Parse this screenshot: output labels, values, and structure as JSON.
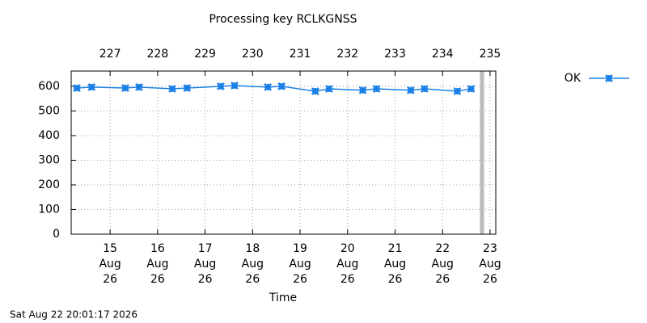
{
  "chart_data": {
    "type": "line",
    "title": "Processing key RCLKGNSS",
    "x_label": "Time",
    "timestamp": "Sat Aug 22 20:01:17 2026",
    "x": [
      226.3,
      226.61,
      227.32,
      227.61,
      228.31,
      228.62,
      229.33,
      229.62,
      230.32,
      230.61,
      231.32,
      231.61,
      232.32,
      232.61,
      233.33,
      233.62,
      234.31,
      234.6
    ],
    "series": [
      {
        "name": "OK",
        "color": "#1a80e6",
        "values": [
          593,
          597,
          593,
          597,
          590,
          593,
          600,
          603,
          597,
          600,
          580,
          590,
          584,
          590,
          584,
          590,
          580,
          590
        ]
      }
    ],
    "now_marker": 234.83,
    "xlim": [
      226.18,
      235.12
    ],
    "ylim": [
      0,
      662
    ],
    "yticks": [
      0,
      100,
      200,
      300,
      400,
      500,
      600
    ],
    "x2ticks": [
      227,
      228,
      229,
      230,
      231,
      232,
      233,
      234,
      235
    ],
    "xticks": [
      {
        "value": 227,
        "label": [
          "15",
          "Aug",
          "26"
        ]
      },
      {
        "value": 228,
        "label": [
          "16",
          "Aug",
          "26"
        ]
      },
      {
        "value": 229,
        "label": [
          "17",
          "Aug",
          "26"
        ]
      },
      {
        "value": 230,
        "label": [
          "18",
          "Aug",
          "26"
        ]
      },
      {
        "value": 231,
        "label": [
          "19",
          "Aug",
          "26"
        ]
      },
      {
        "value": 232,
        "label": [
          "20",
          "Aug",
          "26"
        ]
      },
      {
        "value": 233,
        "label": [
          "21",
          "Aug",
          "26"
        ]
      },
      {
        "value": 234,
        "label": [
          "22",
          "Aug",
          "26"
        ]
      },
      {
        "value": 235,
        "label": [
          "23",
          "Aug",
          "26"
        ]
      }
    ],
    "grid": true,
    "legend": "top-right"
  }
}
